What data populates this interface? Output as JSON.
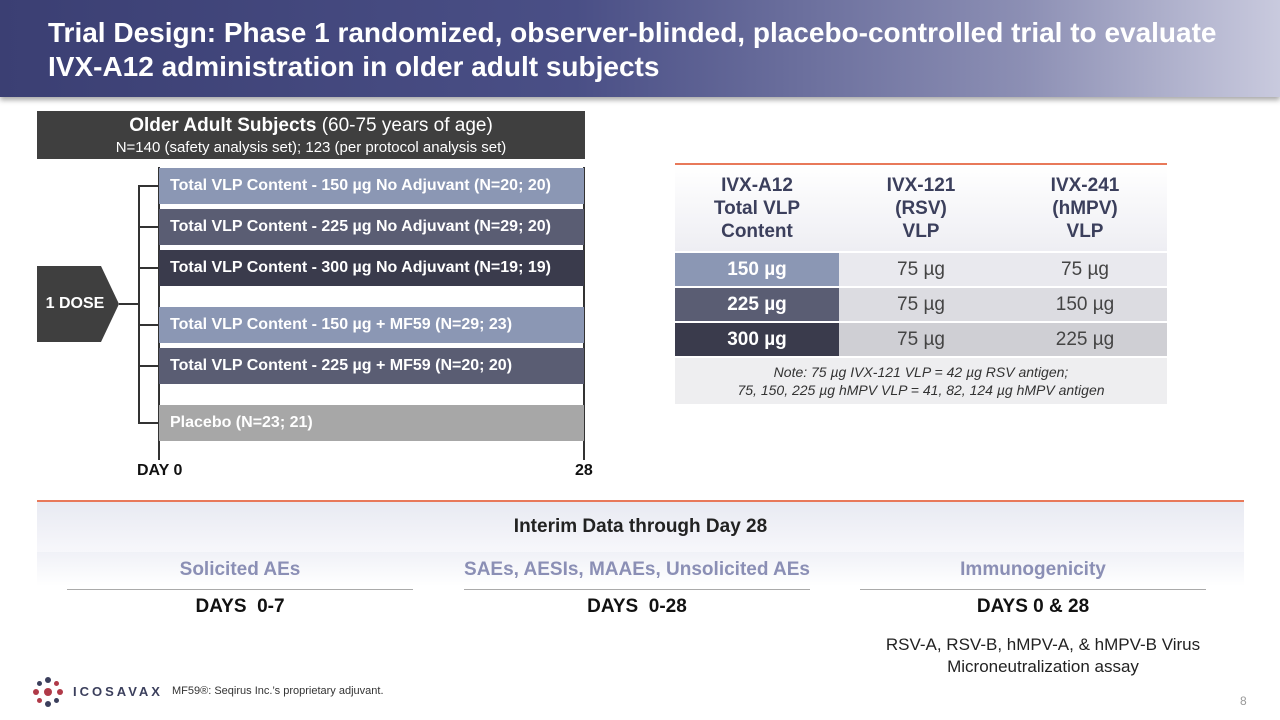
{
  "title": "Trial Design: Phase 1 randomized, observer-blinded, placebo-controlled trial to evaluate IVX-A12 administration in older adult subjects",
  "subjects": {
    "heading_bold": "Older Adult Subjects",
    "heading_rest": " (60-75 years of age)",
    "counts": "N=140 (safety analysis set); 123 (per protocol analysis set)"
  },
  "dose_label": "1 DOSE",
  "arms": [
    {
      "label": "Total VLP Content - 150 µg No Adjuvant (N=20; 20)",
      "color": "#8b97b4"
    },
    {
      "label": "Total VLP Content - 225 µg No Adjuvant (N=29; 20)",
      "color": "#5a5d73"
    },
    {
      "label": "Total VLP Content - 300 µg No Adjuvant (N=19; 19)",
      "color": "#3a3b4c"
    },
    {
      "label": "Total VLP Content - 150 µg + MF59 (N=29; 23)",
      "color": "#8b97b4"
    },
    {
      "label": "Total VLP Content - 225 µg + MF59 (N=20; 20)",
      "color": "#5a5d73"
    },
    {
      "label": "Placebo (N=23; 21)",
      "color": "#a7a7a7"
    }
  ],
  "timeline": {
    "start": "DAY 0",
    "end": "28"
  },
  "table": {
    "headers": [
      [
        "IVX-A12",
        "Total VLP",
        "Content"
      ],
      [
        "IVX-121",
        "(RSV)",
        "VLP"
      ],
      [
        "IVX-241",
        "(hMPV)",
        "VLP"
      ]
    ],
    "rows": [
      {
        "dose": "150 µg",
        "rsv": "75 µg",
        "hmpv": "75 µg",
        "color": "#8b97b4"
      },
      {
        "dose": "225 µg",
        "rsv": "75 µg",
        "hmpv": "150 µg",
        "color": "#5a5d73"
      },
      {
        "dose": "300 µg",
        "rsv": "75 µg",
        "hmpv": "225 µg",
        "color": "#3a3b4c"
      }
    ],
    "note_line1": "Note: 75 µg IVX-121 VLP = 42 µg RSV antigen;",
    "note_line2": "75, 150, 225 µg hMPV VLP = 41, 82, 124 µg hMPV antigen"
  },
  "interim": {
    "header": "Interim Data through Day 28",
    "columns": [
      {
        "title": "Solicited AEs",
        "days": "DAYS  0-7"
      },
      {
        "title": "SAEs, AESIs, MAAEs, Unsolicited AEs",
        "days": "DAYS  0-28"
      },
      {
        "title": "Immunogenicity",
        "days": "DAYS 0 & 28"
      }
    ],
    "assay_line1": "RSV-A, RSV-B, hMPV-A, & hMPV-B Virus",
    "assay_line2": "Microneutralization assay"
  },
  "logo_text": "ICOSAVAX",
  "footnote": "MF59®: Seqirus Inc.’s proprietary adjuvant.",
  "page_number": "8",
  "colors": {
    "accent": "#e8795a",
    "brand": "#4a4f86"
  }
}
